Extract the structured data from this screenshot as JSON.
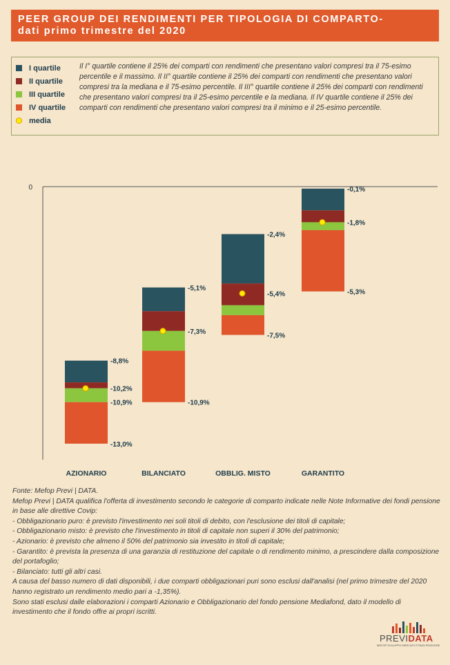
{
  "header": {
    "title_line1": "PEER GROUP DEI RENDIMENTI PER TIPOLOGIA DI COMPARTO-",
    "title_line2": "dati primo trimestre del 2020"
  },
  "legend": {
    "items": [
      {
        "label": "I quartile",
        "color": "#2a5360"
      },
      {
        "label": "II quartile",
        "color": "#8e2a23"
      },
      {
        "label": "III quartile",
        "color": "#8cc63f"
      },
      {
        "label": "IV quartile",
        "color": "#e0552b"
      }
    ],
    "media_label": "media",
    "media_color": "#ffee00",
    "description": "Il I° quartile contiene il 25% dei comparti con rendimenti che presentano valori compresi tra il 75-esimo percentile e il massimo. Il II° quartile contiene il 25% dei comparti con rendimenti che presentano valori compresi tra la mediana e il 75-esimo percentile. Il III° quartile contiene il 25% dei comparti con rendimenti che presentano valori compresi tra il 25-esimo percentile e la mediana. Il IV quartile contiene il 25% dei comparti con rendimenti che presentano valori compresi tra il minimo e il 25-esimo percentile."
  },
  "chart_data": {
    "type": "bar",
    "subtype": "floating-quartile-boxes",
    "categories": [
      "AZIONARIO",
      "BILANCIATO",
      "OBBLIG. MISTO",
      "GARANTITO"
    ],
    "y_zero_label": "0",
    "ylim": [
      -14.4,
      0
    ],
    "series": [
      {
        "name": "I quartile",
        "color": "#2a5360",
        "from": [
          -8.8,
          -5.1,
          -2.4,
          -0.1
        ],
        "to": [
          -9.9,
          -6.3,
          -4.9,
          -1.2
        ]
      },
      {
        "name": "II quartile",
        "color": "#8e2a23",
        "from": [
          -9.9,
          -6.3,
          -4.9,
          -1.2
        ],
        "to": [
          -10.2,
          -7.3,
          -6.0,
          -1.8
        ]
      },
      {
        "name": "III quartile",
        "color": "#8cc63f",
        "from": [
          -10.2,
          -7.3,
          -6.0,
          -1.8
        ],
        "to": [
          -10.9,
          -8.3,
          -6.5,
          -2.2
        ]
      },
      {
        "name": "IV quartile",
        "color": "#e0552b",
        "from": [
          -10.9,
          -8.3,
          -6.5,
          -2.2
        ],
        "to": [
          -13.0,
          -10.9,
          -7.5,
          -5.3
        ]
      }
    ],
    "media": [
      -10.2,
      -7.3,
      -5.4,
      -1.8
    ],
    "data_labels": [
      [
        "-8,8%",
        "-10,2%",
        "-10,9%",
        "-13,0%"
      ],
      [
        "-5,1%",
        "-7,3%",
        "-10,9%"
      ],
      [
        "-2,4%",
        "-5,4%",
        "-7,5%"
      ],
      [
        "-0,1%",
        "-1,8%",
        "-5,3%"
      ]
    ],
    "data_label_values": [
      [
        -8.8,
        -10.2,
        -10.9,
        -13.0
      ],
      [
        -5.1,
        -7.3,
        -10.9
      ],
      [
        -2.4,
        -5.4,
        -7.5
      ],
      [
        -0.1,
        -1.8,
        -5.3
      ]
    ]
  },
  "notes": [
    "Fonte: Mefop Previ | DATA.",
    "Mefop Previ | DATA qualifica l'offerta di investimento secondo le categorie di comparto indicate nelle Note Informative dei fondi pensione in base alle direttive Covip:",
    "- Obbligazionario puro: è previsto l'investimento nei soli titoli di debito, con l'esclusione dei titoli di capitale;",
    "- Obbligazionario misto: è previsto che l'investimento in titoli di capitale non superi il 30% del patrimonio;",
    "- Azionario: è previsto che almeno il 50% del patrimonio sia investito in titoli di capitale;",
    "- Garantito: è prevista la presenza di una garanzia di restituzione del capitale o di rendimento minimo, a prescindere dalla composizione del portafoglio;",
    "- Bilanciato: tutti gli altri casi.",
    "A causa del basso numero di dati disponibili, i due comparti obbligazionari puri sono esclusi dall'analisi (nel primo trimestre del 2020 hanno registrato un rendimento medio pari a -1,35%).",
    "Sono stati esclusi dalle elaborazioni i comparti Azionario e Obbligazionario del fondo pensione Mediafond, dato il modello di investimento che il fondo offre ai propri iscritti."
  ],
  "logo": {
    "word_a": "PREVI",
    "word_b": "DATA",
    "sub": "MEFOP SVILUPPO MERCATO FONDI PENSIONE",
    "bar_colors": [
      "#c0392b",
      "#e0552b",
      "#8e2a23",
      "#2a5360",
      "#8cc63f",
      "#e0552b",
      "#c0392b",
      "#2a5360",
      "#8e2a23",
      "#e0552b"
    ]
  }
}
